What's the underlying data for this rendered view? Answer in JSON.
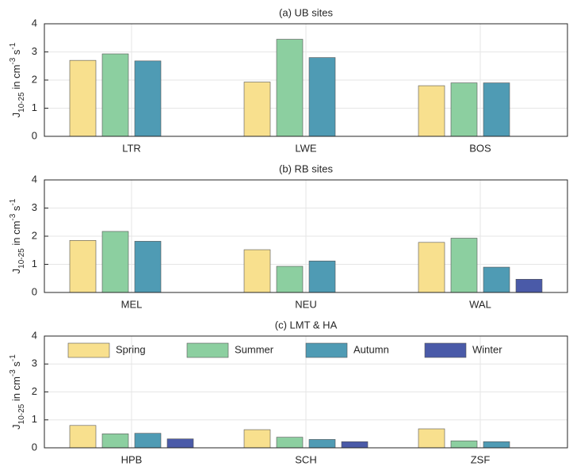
{
  "chart_data": [
    {
      "type": "bar",
      "title": "(a) UB sites",
      "categories": [
        "LTR",
        "LWE",
        "BOS"
      ],
      "ylabel": [
        "J",
        "10-25",
        " in cm",
        "-3",
        " s",
        "-1"
      ],
      "series": [
        {
          "name": "Spring",
          "color": "#f8e08e",
          "values": [
            2.7,
            1.93,
            1.8
          ]
        },
        {
          "name": "Summer",
          "color": "#8ccfa0",
          "values": [
            2.93,
            3.45,
            1.9
          ]
        },
        {
          "name": "Autumn",
          "color": "#4f9bb4",
          "values": [
            2.68,
            2.8,
            1.9
          ]
        },
        {
          "name": "Winter",
          "color": "#4a5aa8",
          "values": [
            null,
            null,
            null
          ]
        }
      ],
      "ylim": [
        0,
        4
      ],
      "yticks": [
        0,
        1,
        2,
        3,
        4
      ],
      "grid": true,
      "legend": false
    },
    {
      "type": "bar",
      "title": "(b) RB sites",
      "categories": [
        "MEL",
        "NEU",
        "WAL"
      ],
      "ylabel": [
        "J",
        "10-25",
        " in cm",
        "-3",
        " s",
        "-1"
      ],
      "series": [
        {
          "name": "Spring",
          "color": "#f8e08e",
          "values": [
            1.85,
            1.52,
            1.78
          ]
        },
        {
          "name": "Summer",
          "color": "#8ccfa0",
          "values": [
            2.17,
            0.93,
            1.93
          ]
        },
        {
          "name": "Autumn",
          "color": "#4f9bb4",
          "values": [
            1.82,
            1.12,
            0.9
          ]
        },
        {
          "name": "Winter",
          "color": "#4a5aa8",
          "values": [
            null,
            null,
            0.47
          ]
        }
      ],
      "ylim": [
        0,
        4
      ],
      "yticks": [
        0,
        1,
        2,
        3,
        4
      ],
      "grid": true,
      "legend": false
    },
    {
      "type": "bar",
      "title": "(c) LMT & HA",
      "categories": [
        "HPB",
        "SCH",
        "ZSF"
      ],
      "ylabel": [
        "J",
        "10-25",
        " in cm",
        "-3",
        " s",
        "-1"
      ],
      "series": [
        {
          "name": "Spring",
          "color": "#f8e08e",
          "values": [
            0.8,
            0.65,
            0.68
          ]
        },
        {
          "name": "Summer",
          "color": "#8ccfa0",
          "values": [
            0.5,
            0.38,
            0.25
          ]
        },
        {
          "name": "Autumn",
          "color": "#4f9bb4",
          "values": [
            0.52,
            0.3,
            0.22
          ]
        },
        {
          "name": "Winter",
          "color": "#4a5aa8",
          "values": [
            0.32,
            0.22,
            null
          ]
        }
      ],
      "ylim": [
        0,
        4
      ],
      "yticks": [
        0,
        1,
        2,
        3,
        4
      ],
      "grid": true,
      "legend": "top"
    }
  ]
}
